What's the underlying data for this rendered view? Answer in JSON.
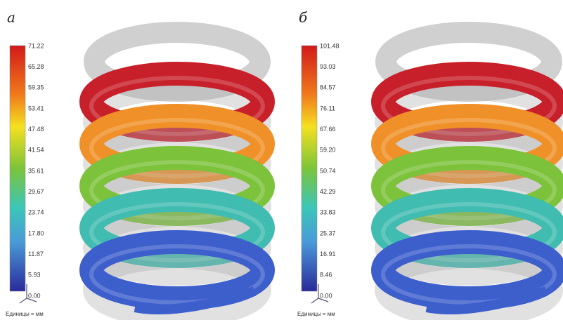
{
  "panels": [
    {
      "label": "а",
      "colorbar": {
        "ticks": [
          "71.22",
          "65.28",
          "59.35",
          "53.41",
          "47.48",
          "41.54",
          "35.61",
          "29.67",
          "23.74",
          "17.80",
          "11.87",
          "5.93",
          "0.00"
        ]
      },
      "units": "Единицы = мм"
    },
    {
      "label": "б",
      "colorbar": {
        "ticks": [
          "101.48",
          "93.03",
          "84.57",
          "76.11",
          "67.66",
          "59.20",
          "50.74",
          "42.29",
          "33.83",
          "25.37",
          "16.91",
          "8.46",
          "0.00"
        ]
      },
      "units": "Единицы = мм"
    }
  ]
}
